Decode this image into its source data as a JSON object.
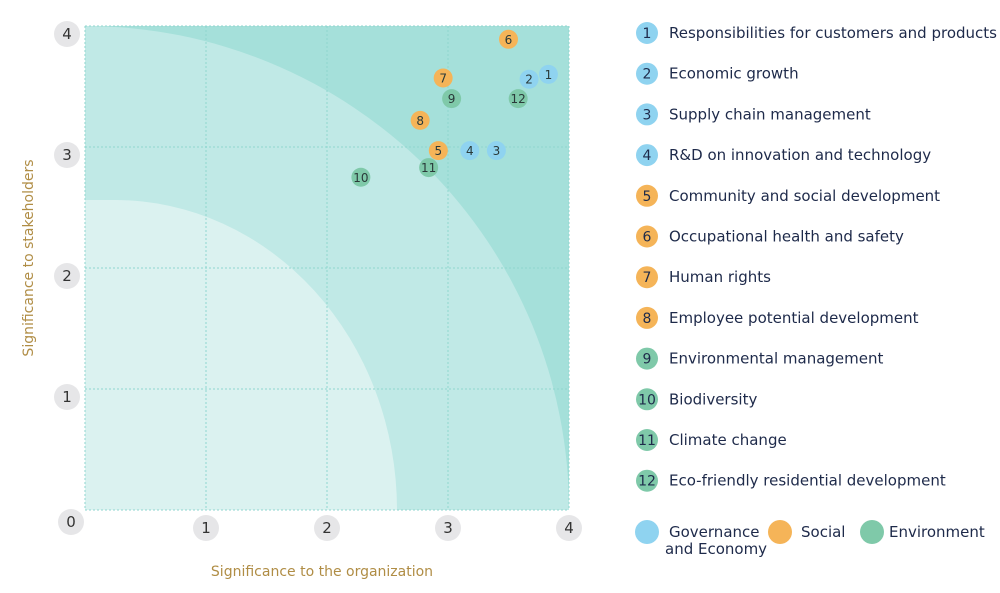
{
  "chart_data": {
    "type": "scatter",
    "xlabel": "Significance to the organization",
    "ylabel": "Significance to stakeholders",
    "xlim": [
      0,
      4
    ],
    "ylim": [
      0,
      4
    ],
    "x_ticks": [
      "0",
      "1",
      "2",
      "3",
      "4"
    ],
    "y_ticks": [
      "1",
      "2",
      "3",
      "4"
    ],
    "grid": true,
    "legend_placement": "right",
    "categories": [
      {
        "key": "gov",
        "name": "Governance and Economy",
        "name_lines": [
          "Governance",
          "and Economy"
        ],
        "color": "#8fd3f0"
      },
      {
        "key": "soc",
        "name": "Social",
        "name_lines": [
          "Social"
        ],
        "color": "#f5b458"
      },
      {
        "key": "env",
        "name": "Environment",
        "name_lines": [
          "Environment"
        ],
        "color": "#7fc9a9"
      }
    ],
    "points": [
      {
        "id": "1",
        "label": "Responsibilities for customers and products",
        "category": "gov",
        "x": 3.83,
        "y": 3.6
      },
      {
        "id": "2",
        "label": "Economic growth",
        "category": "gov",
        "x": 3.67,
        "y": 3.56
      },
      {
        "id": "3",
        "label": "Supply chain management",
        "category": "gov",
        "x": 3.4,
        "y": 2.97
      },
      {
        "id": "4",
        "label": "R&D on innovation and technology",
        "category": "gov",
        "x": 3.18,
        "y": 2.97
      },
      {
        "id": "5",
        "label": "Community and social development",
        "category": "soc",
        "x": 2.92,
        "y": 2.97
      },
      {
        "id": "6",
        "label": "Occupational health and safety",
        "category": "soc",
        "x": 3.5,
        "y": 3.89
      },
      {
        "id": "7",
        "label": "Human rights",
        "category": "soc",
        "x": 2.96,
        "y": 3.57
      },
      {
        "id": "8",
        "label": "Employee potential development",
        "category": "soc",
        "x": 2.77,
        "y": 3.22
      },
      {
        "id": "9",
        "label": "Environmental management",
        "category": "env",
        "x": 3.03,
        "y": 3.4
      },
      {
        "id": "10",
        "label": "Biodiversity",
        "category": "env",
        "x": 2.28,
        "y": 2.75
      },
      {
        "id": "11",
        "label": "Climate change",
        "category": "env",
        "x": 2.84,
        "y": 2.83
      },
      {
        "id": "12",
        "label": "Eco-friendly residential development",
        "category": "env",
        "x": 3.58,
        "y": 3.4
      }
    ],
    "background_colors": [
      "#a5e0da",
      "#c0e9e6",
      "#dbf2f0"
    ]
  }
}
